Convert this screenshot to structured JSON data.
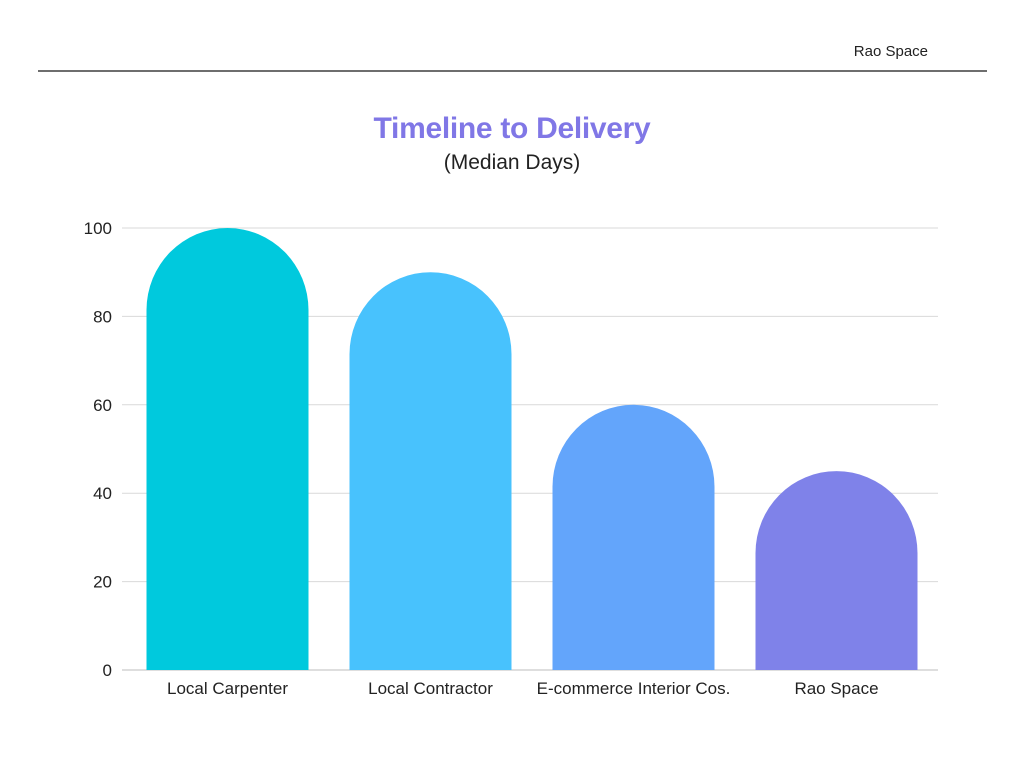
{
  "header": {
    "brand": "Rao Space"
  },
  "chart_data": {
    "type": "bar",
    "title": "Timeline to Delivery",
    "subtitle": "(Median Days)",
    "xlabel": "",
    "ylabel": "",
    "categories": [
      "Local Carpenter",
      "Local Contractor",
      "E-commerce Interior Cos.",
      "Rao Space"
    ],
    "values": [
      100,
      90,
      60,
      45
    ],
    "ylim": [
      0,
      100
    ],
    "yticks": [
      0,
      20,
      40,
      60,
      80,
      100
    ],
    "grid": true,
    "legend": "none",
    "colors": [
      "#00c9dd",
      "#48c2fd",
      "#63a5fb",
      "#7f82e9"
    ]
  }
}
